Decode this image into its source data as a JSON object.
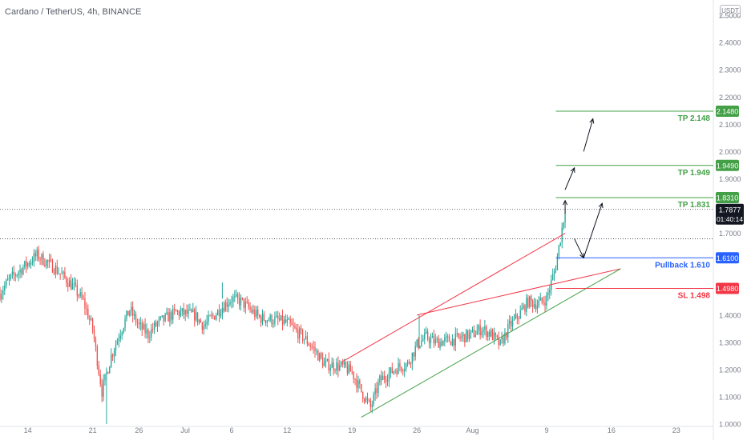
{
  "header": {
    "pair_title": "Cardano / TetherUS, 4h, BINANCE",
    "currency_button": "USDT"
  },
  "colors": {
    "up": "#26a69a",
    "down": "#ef5350",
    "tp": "#43a047",
    "pullback": "#2962ff",
    "sl": "#f23645",
    "current": "#131722"
  },
  "chart_data": {
    "type": "candlestick",
    "title": "",
    "y_ticks": [
      "2.5000",
      "2.4000",
      "2.3000",
      "2.2000",
      "2.1000",
      "2.0000",
      "1.9000",
      "1.7000",
      "1.4000",
      "1.3000",
      "1.2000",
      "1.1000",
      "1.0000"
    ],
    "x_ticks": [
      "14",
      "21",
      "26",
      "Jul",
      "6",
      "12",
      "19",
      "26",
      "Aug",
      "9",
      "16",
      "23"
    ],
    "ylim": [
      0.9945,
      2.5325
    ],
    "x_range": [
      "2021-06-11",
      "2021-08-27"
    ],
    "last_candle": "2021-08-11T00:00",
    "levels": [
      {
        "name": "TP 1",
        "label": "TP 1.831",
        "badge": "1.8310",
        "value": 1.831,
        "color": "#43a047"
      },
      {
        "name": "TP 2",
        "label": "TP 1.949",
        "badge": "1.9490",
        "value": 1.949,
        "color": "#43a047"
      },
      {
        "name": "TP 3",
        "label": "TP 2.148",
        "badge": "2.1480",
        "value": 2.148,
        "color": "#43a047"
      },
      {
        "name": "Pullback",
        "label": "Pullback 1.610",
        "badge": "1.6100",
        "value": 1.61,
        "color": "#2962ff"
      },
      {
        "name": "SL",
        "label": "SL 1.498",
        "badge": "1.4980",
        "value": 1.498,
        "color": "#f23645"
      }
    ],
    "current_price": {
      "badge": "1.7877",
      "countdown": "01:40:14",
      "value": 1.7877
    },
    "prior_close_line": 1.68,
    "trendlines": [
      {
        "color": "#f23645",
        "from": [
          "2021-07-18",
          1.23
        ],
        "to": [
          "2021-08-11",
          1.7
        ]
      },
      {
        "color": "#f23645",
        "from": [
          "2021-07-26",
          1.4
        ],
        "to": [
          "2021-08-17",
          1.57
        ]
      },
      {
        "color": "#43a047",
        "from": [
          "2021-07-20",
          1.025
        ],
        "to": [
          "2021-08-17",
          1.57
        ]
      }
    ],
    "arrows": [
      {
        "from": [
          "2021-08-11",
          1.77
        ],
        "to": [
          "2021-08-11",
          1.82
        ]
      },
      {
        "from": [
          "2021-08-11",
          1.86
        ],
        "to": [
          "2021-08-12",
          1.94
        ]
      },
      {
        "from": [
          "2021-08-13",
          2.0
        ],
        "to": [
          "2021-08-14",
          2.12
        ]
      },
      {
        "from": [
          "2021-08-12",
          1.68
        ],
        "to": [
          "2021-08-13",
          1.61
        ]
      },
      {
        "from": [
          "2021-08-13",
          1.61
        ],
        "to": [
          "2021-08-15",
          1.81
        ]
      }
    ],
    "anchors": [
      [
        "2021-06-11",
        1.48
      ],
      [
        "2021-06-12",
        1.53
      ],
      [
        "2021-06-14",
        1.59
      ],
      [
        "2021-06-15",
        1.62
      ],
      [
        "2021-06-17",
        1.57
      ],
      [
        "2021-06-19",
        1.5
      ],
      [
        "2021-06-20",
        1.45
      ],
      [
        "2021-06-21",
        1.35
      ],
      [
        "2021-06-22",
        1.12
      ],
      [
        "2021-06-23",
        1.25
      ],
      [
        "2021-06-24",
        1.34
      ],
      [
        "2021-06-25",
        1.42
      ],
      [
        "2021-06-26",
        1.36
      ],
      [
        "2021-06-27",
        1.33
      ],
      [
        "2021-06-28",
        1.37
      ],
      [
        "2021-06-30",
        1.41
      ],
      [
        "2021-07-02",
        1.4
      ],
      [
        "2021-07-03",
        1.36
      ],
      [
        "2021-07-05",
        1.43
      ],
      [
        "2021-07-06",
        1.46
      ],
      [
        "2021-07-07",
        1.45
      ],
      [
        "2021-07-09",
        1.39
      ],
      [
        "2021-07-11",
        1.38
      ],
      [
        "2021-07-12",
        1.37
      ],
      [
        "2021-07-14",
        1.31
      ],
      [
        "2021-07-15",
        1.27
      ],
      [
        "2021-07-16",
        1.22
      ],
      [
        "2021-07-18",
        1.21
      ],
      [
        "2021-07-19",
        1.19
      ],
      [
        "2021-07-20",
        1.12
      ],
      [
        "2021-07-21",
        1.06
      ],
      [
        "2021-07-22",
        1.16
      ],
      [
        "2021-07-24",
        1.21
      ],
      [
        "2021-07-25",
        1.22
      ],
      [
        "2021-07-26",
        1.29
      ],
      [
        "2021-07-27",
        1.32
      ],
      [
        "2021-07-28",
        1.3
      ],
      [
        "2021-07-30",
        1.31
      ],
      [
        "2021-08-01",
        1.33
      ],
      [
        "2021-08-02",
        1.35
      ],
      [
        "2021-08-03",
        1.33
      ],
      [
        "2021-08-04",
        1.29
      ],
      [
        "2021-08-05",
        1.36
      ],
      [
        "2021-08-06",
        1.4
      ],
      [
        "2021-08-07",
        1.45
      ],
      [
        "2021-08-08",
        1.44
      ],
      [
        "2021-08-09",
        1.46
      ],
      [
        "2021-08-10",
        1.58
      ],
      [
        "2021-08-11",
        1.7877
      ]
    ]
  }
}
